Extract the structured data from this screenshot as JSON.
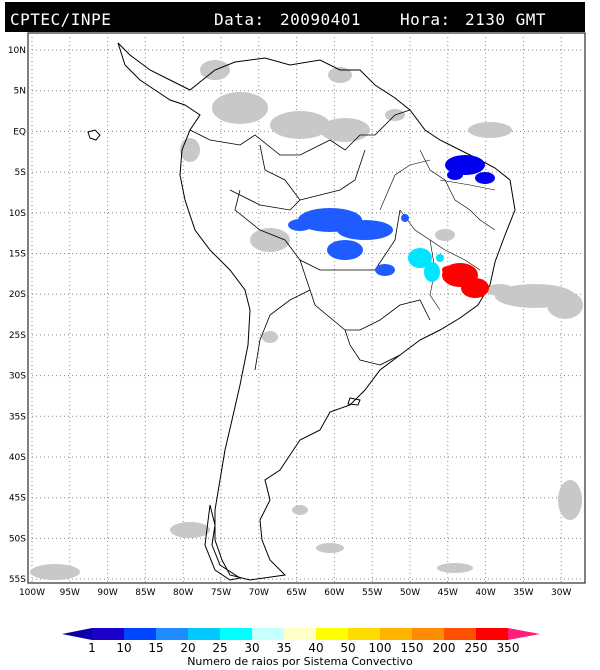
{
  "header": {
    "agency": "CPTEC/INPE",
    "data_label": "Data:",
    "date": "20090401",
    "hora_label": "Hora:",
    "time": "2130 GMT"
  },
  "map": {
    "lat_ticks": [
      "10N",
      "5N",
      "EQ",
      "5S",
      "10S",
      "15S",
      "20S",
      "25S",
      "30S",
      "35S",
      "40S",
      "45S",
      "50S",
      "55S"
    ],
    "lon_ticks": [
      "100W",
      "95W",
      "90W",
      "85W",
      "80W",
      "75W",
      "70W",
      "65W",
      "60W",
      "55W",
      "50W",
      "45W",
      "40W",
      "35W",
      "30W"
    ],
    "lon_range": [
      -100,
      -27
    ],
    "lat_range": [
      -57,
      12
    ],
    "cloud_color": "#c8c8c8",
    "lightning_systems": [
      {
        "name": "ne-brazil-north",
        "color": "#0000ee",
        "lon": -41.5,
        "lat": -5.5
      },
      {
        "name": "central-brazil",
        "color": "#1e5cff",
        "lon": -57.5,
        "lat": -11.5
      },
      {
        "name": "minas-gerais",
        "color": "#00e5ff",
        "lon": -45.5,
        "lat": -17
      },
      {
        "name": "bahia-coast",
        "color": "#ff0000",
        "lon": -41.5,
        "lat": -18.5
      }
    ]
  },
  "colorbar": {
    "labels": [
      "1",
      "10",
      "15",
      "20",
      "25",
      "30",
      "35",
      "40",
      "50",
      "100",
      "150",
      "200",
      "250",
      "350"
    ],
    "colors": [
      "#1a00c8",
      "#0046ff",
      "#1e8cff",
      "#00c8ff",
      "#00ffff",
      "#c8ffff",
      "#ffffc8",
      "#ffff00",
      "#ffdc00",
      "#ffb400",
      "#ff8c00",
      "#ff5000",
      "#ff0000"
    ],
    "left_color": "#0a00aa",
    "right_color": "#ff1e78",
    "title": "Numero de raios por Sistema Convectivo"
  }
}
